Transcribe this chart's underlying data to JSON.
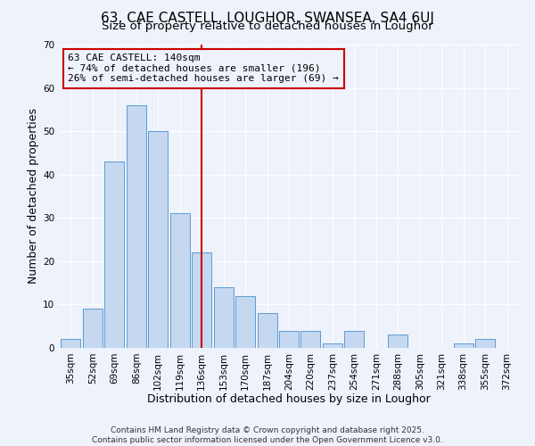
{
  "title": "63, CAE CASTELL, LOUGHOR, SWANSEA, SA4 6UJ",
  "subtitle": "Size of property relative to detached houses in Loughor",
  "xlabel": "Distribution of detached houses by size in Loughor",
  "ylabel": "Number of detached properties",
  "categories": [
    "35sqm",
    "52sqm",
    "69sqm",
    "86sqm",
    "102sqm",
    "119sqm",
    "136sqm",
    "153sqm",
    "170sqm",
    "187sqm",
    "204sqm",
    "220sqm",
    "237sqm",
    "254sqm",
    "271sqm",
    "288sqm",
    "305sqm",
    "321sqm",
    "338sqm",
    "355sqm",
    "372sqm"
  ],
  "values": [
    2,
    9,
    43,
    56,
    50,
    31,
    22,
    14,
    12,
    8,
    4,
    4,
    1,
    4,
    0,
    3,
    0,
    0,
    1,
    2,
    0
  ],
  "bar_color": "#c5d8f0",
  "bar_edge_color": "#5b9bd5",
  "vline_x_index": 6,
  "vline_color": "#cc0000",
  "annotation_title": "63 CAE CASTELL: 140sqm",
  "annotation_line1": "← 74% of detached houses are smaller (196)",
  "annotation_line2": "26% of semi-detached houses are larger (69) →",
  "annotation_box_color": "#cc0000",
  "ylim": [
    0,
    70
  ],
  "yticks": [
    0,
    10,
    20,
    30,
    40,
    50,
    60,
    70
  ],
  "background_color": "#eef2fb",
  "grid_color": "#ffffff",
  "footer1": "Contains HM Land Registry data © Crown copyright and database right 2025.",
  "footer2": "Contains public sector information licensed under the Open Government Licence v3.0.",
  "title_fontsize": 11,
  "subtitle_fontsize": 9.5,
  "axis_label_fontsize": 9,
  "tick_fontsize": 7.5,
  "annotation_fontsize": 8,
  "footer_fontsize": 6.5
}
